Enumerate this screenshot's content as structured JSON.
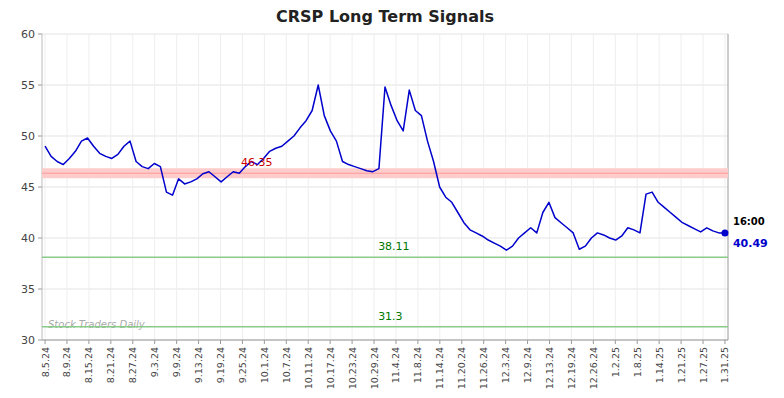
{
  "chart_data": {
    "type": "line",
    "title": "CRSP Long Term Signals",
    "color": "#0000cc",
    "grid": true,
    "xlim": [
      -0.5,
      112.5
    ],
    "xticks": [
      {
        "value": 0,
        "label": "8.5.24"
      },
      {
        "value": 3.6129,
        "label": "8.9.24"
      },
      {
        "value": 7.2258,
        "label": "8.15.24"
      },
      {
        "value": 10.8387,
        "label": "8.21.24"
      },
      {
        "value": 14.4516,
        "label": "8.27.24"
      },
      {
        "value": 18.0645,
        "label": "9.3.24"
      },
      {
        "value": 21.6774,
        "label": "9.9.24"
      },
      {
        "value": 25.2903,
        "label": "9.13.24"
      },
      {
        "value": 28.9032,
        "label": "9.19.24"
      },
      {
        "value": 32.5161,
        "label": "9.25.24"
      },
      {
        "value": 36.129,
        "label": "10.1.24"
      },
      {
        "value": 39.7419,
        "label": "10.7.24"
      },
      {
        "value": 43.3548,
        "label": "10.11.24"
      },
      {
        "value": 46.9677,
        "label": "10.17.24"
      },
      {
        "value": 50.5806,
        "label": "10.23.24"
      },
      {
        "value": 54.1935,
        "label": "10.29.24"
      },
      {
        "value": 57.8065,
        "label": "11.4.24"
      },
      {
        "value": 61.4194,
        "label": "11.8.24"
      },
      {
        "value": 65.0323,
        "label": "11.14.24"
      },
      {
        "value": 68.6452,
        "label": "11.20.24"
      },
      {
        "value": 72.2581,
        "label": "11.26.24"
      },
      {
        "value": 75.871,
        "label": "12.3.24"
      },
      {
        "value": 79.4839,
        "label": "12.9.24"
      },
      {
        "value": 83.0968,
        "label": "12.13.24"
      },
      {
        "value": 86.7097,
        "label": "12.19.24"
      },
      {
        "value": 90.3226,
        "label": "12.26.24"
      },
      {
        "value": 93.9355,
        "label": "1.2.25"
      },
      {
        "value": 97.5484,
        "label": "1.8.25"
      },
      {
        "value": 101.1613,
        "label": "1.14.25"
      },
      {
        "value": 104.7742,
        "label": "1.21.25"
      },
      {
        "value": 108.3871,
        "label": "1.27.25"
      },
      {
        "value": 112,
        "label": "1.31.25"
      }
    ],
    "ylim": [
      30,
      60
    ],
    "yticks": [
      30,
      35,
      40,
      45,
      50,
      55,
      60
    ],
    "x": [
      0,
      1,
      2,
      3,
      4,
      5,
      6,
      7,
      8,
      9,
      10,
      11,
      12,
      13,
      14,
      15,
      16,
      17,
      18,
      19,
      20,
      21,
      22,
      23,
      24,
      25,
      26,
      27,
      28,
      29,
      30,
      31,
      32,
      33,
      34,
      35,
      36,
      37,
      38,
      39,
      40,
      41,
      42,
      43,
      44,
      45,
      46,
      47,
      48,
      49,
      50,
      51,
      52,
      53,
      54,
      55,
      56,
      57,
      58,
      59,
      60,
      61,
      62,
      63,
      64,
      65,
      66,
      67,
      68,
      69,
      70,
      71,
      72,
      73,
      74,
      75,
      76,
      77,
      78,
      79,
      80,
      81,
      82,
      83,
      84,
      85,
      86,
      87,
      88,
      89,
      90,
      91,
      92,
      93,
      94,
      95,
      96,
      97,
      98,
      99,
      100,
      101,
      102,
      103,
      104,
      105,
      106,
      107,
      108,
      109,
      110,
      111,
      112
    ],
    "values": [
      49.0,
      48.0,
      47.5,
      47.2,
      47.8,
      48.5,
      49.5,
      49.8,
      49.0,
      48.3,
      48.0,
      47.8,
      48.2,
      49.0,
      49.5,
      47.5,
      47.0,
      46.8,
      47.3,
      47.0,
      44.5,
      44.2,
      45.8,
      45.3,
      45.5,
      45.8,
      46.3,
      46.5,
      46.0,
      45.5,
      46.0,
      46.5,
      46.35,
      47.0,
      47.5,
      47.2,
      47.8,
      48.5,
      48.8,
      49.0,
      49.5,
      50.0,
      50.8,
      51.5,
      52.5,
      55.0,
      52.0,
      50.5,
      49.5,
      47.5,
      47.2,
      47.0,
      46.8,
      46.6,
      46.5,
      46.8,
      54.8,
      53.0,
      51.5,
      50.5,
      54.5,
      52.5,
      52.0,
      49.5,
      47.5,
      45.0,
      44.0,
      43.5,
      42.5,
      41.5,
      40.8,
      40.5,
      40.2,
      39.8,
      39.5,
      39.2,
      38.8,
      39.2,
      40.0,
      40.5,
      41.0,
      40.5,
      42.5,
      43.5,
      42.0,
      41.5,
      41.0,
      40.5,
      38.9,
      39.2,
      40.0,
      40.5,
      40.3,
      40.0,
      39.8,
      40.2,
      41.0,
      40.8,
      40.5,
      44.3,
      44.5,
      43.5,
      43.0,
      42.5,
      42.0,
      41.5,
      41.2,
      40.9,
      40.6,
      41.0,
      40.7,
      40.5,
      40.49
    ],
    "reference_lines": [
      {
        "value": 46.35,
        "label": "46.35",
        "color": "#ff9999",
        "band_color": "#ffcccc",
        "label_color": "#cc0000"
      },
      {
        "value": 38.11,
        "label": "38.11",
        "color": "#88cc88",
        "label_color": "#007700"
      },
      {
        "value": 31.3,
        "label": "31.3",
        "color": "#88cc88",
        "label_color": "#007700"
      }
    ],
    "last_price": 40.49,
    "last_label": "16:00",
    "watermark": "Stock Traders Daily"
  }
}
